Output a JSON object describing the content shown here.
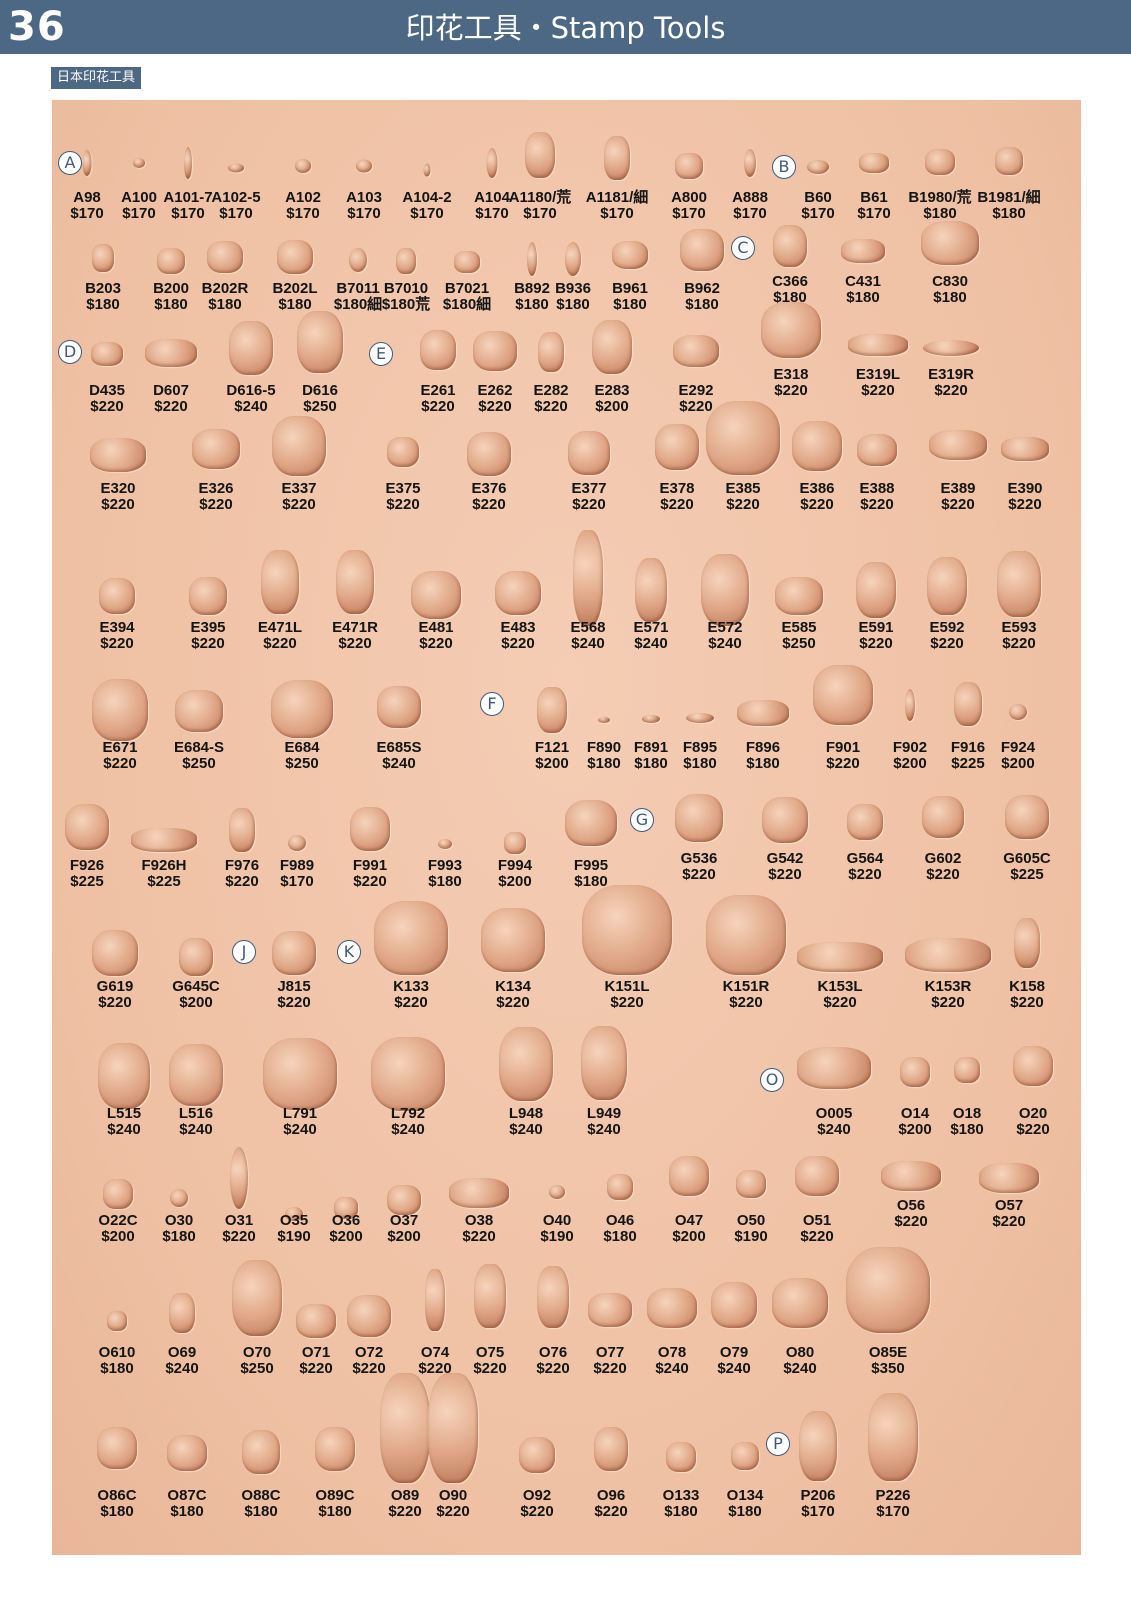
{
  "header": {
    "page_number": "36",
    "title": "印花工具・Stamp Tools"
  },
  "badge": "日本印花工具",
  "sections": [
    "A",
    "B",
    "C",
    "D",
    "E",
    "F",
    "G",
    "J",
    "K",
    "O",
    "P"
  ],
  "stamps": [
    {
      "code": "A98",
      "price": "$170"
    },
    {
      "code": "A100",
      "price": "$170"
    },
    {
      "code": "A101-7",
      "price": "$170"
    },
    {
      "code": "A102-5",
      "price": "$170"
    },
    {
      "code": "A102",
      "price": "$170"
    },
    {
      "code": "A103",
      "price": "$170"
    },
    {
      "code": "A104-2",
      "price": "$170"
    },
    {
      "code": "A104",
      "price": "$170"
    },
    {
      "code": "A1180/荒",
      "price": "$170"
    },
    {
      "code": "A1181/細",
      "price": "$170"
    },
    {
      "code": "A800",
      "price": "$170"
    },
    {
      "code": "A888",
      "price": "$170"
    },
    {
      "code": "B60",
      "price": "$170"
    },
    {
      "code": "B61",
      "price": "$170"
    },
    {
      "code": "B1980/荒",
      "price": "$180"
    },
    {
      "code": "B1981/細",
      "price": "$180"
    },
    {
      "code": "B203",
      "price": "$180"
    },
    {
      "code": "B200",
      "price": "$180"
    },
    {
      "code": "B202R",
      "price": "$180"
    },
    {
      "code": "B202L",
      "price": "$180"
    },
    {
      "code": "B7011",
      "price": "$180細"
    },
    {
      "code": "B7010",
      "price": "$180荒"
    },
    {
      "code": "B7021",
      "price": "$180細"
    },
    {
      "code": "B892",
      "price": "$180"
    },
    {
      "code": "B936",
      "price": "$180"
    },
    {
      "code": "B961",
      "price": "$180"
    },
    {
      "code": "B962",
      "price": "$180"
    },
    {
      "code": "C366",
      "price": "$180"
    },
    {
      "code": "C431",
      "price": "$180"
    },
    {
      "code": "C830",
      "price": "$180"
    },
    {
      "code": "D435",
      "price": "$220"
    },
    {
      "code": "D607",
      "price": "$220"
    },
    {
      "code": "D616-5",
      "price": "$240"
    },
    {
      "code": "D616",
      "price": "$250"
    },
    {
      "code": "E261",
      "price": "$220"
    },
    {
      "code": "E262",
      "price": "$220"
    },
    {
      "code": "E282",
      "price": "$220"
    },
    {
      "code": "E283",
      "price": "$200"
    },
    {
      "code": "E292",
      "price": "$220"
    },
    {
      "code": "E318",
      "price": "$220"
    },
    {
      "code": "E319L",
      "price": "$220"
    },
    {
      "code": "E319R",
      "price": "$220"
    },
    {
      "code": "E320",
      "price": "$220"
    },
    {
      "code": "E326",
      "price": "$220"
    },
    {
      "code": "E337",
      "price": "$220"
    },
    {
      "code": "E375",
      "price": "$220"
    },
    {
      "code": "E376",
      "price": "$220"
    },
    {
      "code": "E377",
      "price": "$220"
    },
    {
      "code": "E378",
      "price": "$220"
    },
    {
      "code": "E385",
      "price": "$220"
    },
    {
      "code": "E386",
      "price": "$220"
    },
    {
      "code": "E388",
      "price": "$220"
    },
    {
      "code": "E389",
      "price": "$220"
    },
    {
      "code": "E390",
      "price": "$220"
    },
    {
      "code": "E394",
      "price": "$220"
    },
    {
      "code": "E395",
      "price": "$220"
    },
    {
      "code": "E471L",
      "price": "$220"
    },
    {
      "code": "E471R",
      "price": "$220"
    },
    {
      "code": "E481",
      "price": "$220"
    },
    {
      "code": "E483",
      "price": "$220"
    },
    {
      "code": "E568",
      "price": "$240"
    },
    {
      "code": "E571",
      "price": "$240"
    },
    {
      "code": "E572",
      "price": "$240"
    },
    {
      "code": "E585",
      "price": "$250"
    },
    {
      "code": "E591",
      "price": "$220"
    },
    {
      "code": "E592",
      "price": "$220"
    },
    {
      "code": "E593",
      "price": "$220"
    },
    {
      "code": "E671",
      "price": "$220"
    },
    {
      "code": "E684-S",
      "price": "$250"
    },
    {
      "code": "E684",
      "price": "$250"
    },
    {
      "code": "E685S",
      "price": "$240"
    },
    {
      "code": "F121",
      "price": "$200"
    },
    {
      "code": "F890",
      "price": "$180"
    },
    {
      "code": "F891",
      "price": "$180"
    },
    {
      "code": "F895",
      "price": "$180"
    },
    {
      "code": "F896",
      "price": "$180"
    },
    {
      "code": "F901",
      "price": "$220"
    },
    {
      "code": "F902",
      "price": "$200"
    },
    {
      "code": "F916",
      "price": "$225"
    },
    {
      "code": "F924",
      "price": "$200"
    },
    {
      "code": "F926",
      "price": "$225"
    },
    {
      "code": "F926H",
      "price": "$225"
    },
    {
      "code": "F976",
      "price": "$220"
    },
    {
      "code": "F989",
      "price": "$170"
    },
    {
      "code": "F991",
      "price": "$220"
    },
    {
      "code": "F993",
      "price": "$180"
    },
    {
      "code": "F994",
      "price": "$200"
    },
    {
      "code": "F995",
      "price": "$180"
    },
    {
      "code": "G536",
      "price": "$220"
    },
    {
      "code": "G542",
      "price": "$220"
    },
    {
      "code": "G564",
      "price": "$220"
    },
    {
      "code": "G602",
      "price": "$220"
    },
    {
      "code": "G605C",
      "price": "$225"
    },
    {
      "code": "G619",
      "price": "$220"
    },
    {
      "code": "G645C",
      "price": "$200"
    },
    {
      "code": "J815",
      "price": "$220"
    },
    {
      "code": "K133",
      "price": "$220"
    },
    {
      "code": "K134",
      "price": "$220"
    },
    {
      "code": "K151L",
      "price": "$220"
    },
    {
      "code": "K151R",
      "price": "$220"
    },
    {
      "code": "K153L",
      "price": "$220"
    },
    {
      "code": "K153R",
      "price": "$220"
    },
    {
      "code": "K158",
      "price": "$220"
    },
    {
      "code": "L515",
      "price": "$240"
    },
    {
      "code": "L516",
      "price": "$240"
    },
    {
      "code": "L791",
      "price": "$240"
    },
    {
      "code": "L792",
      "price": "$240"
    },
    {
      "code": "L948",
      "price": "$240"
    },
    {
      "code": "L949",
      "price": "$240"
    },
    {
      "code": "O005",
      "price": "$240"
    },
    {
      "code": "O14",
      "price": "$200"
    },
    {
      "code": "O18",
      "price": "$180"
    },
    {
      "code": "O20",
      "price": "$220"
    },
    {
      "code": "O22C",
      "price": "$200"
    },
    {
      "code": "O30",
      "price": "$180"
    },
    {
      "code": "O31",
      "price": "$220"
    },
    {
      "code": "O35",
      "price": "$190"
    },
    {
      "code": "O36",
      "price": "$200"
    },
    {
      "code": "O37",
      "price": "$200"
    },
    {
      "code": "O38",
      "price": "$220"
    },
    {
      "code": "O40",
      "price": "$190"
    },
    {
      "code": "O46",
      "price": "$180"
    },
    {
      "code": "O47",
      "price": "$200"
    },
    {
      "code": "O50",
      "price": "$190"
    },
    {
      "code": "O51",
      "price": "$220"
    },
    {
      "code": "O56",
      "price": "$220"
    },
    {
      "code": "O57",
      "price": "$220"
    },
    {
      "code": "O610",
      "price": "$180"
    },
    {
      "code": "O69",
      "price": "$240"
    },
    {
      "code": "O70",
      "price": "$250"
    },
    {
      "code": "O71",
      "price": "$220"
    },
    {
      "code": "O72",
      "price": "$220"
    },
    {
      "code": "O74",
      "price": "$220"
    },
    {
      "code": "O75",
      "price": "$220"
    },
    {
      "code": "O76",
      "price": "$220"
    },
    {
      "code": "O77",
      "price": "$220"
    },
    {
      "code": "O78",
      "price": "$240"
    },
    {
      "code": "O79",
      "price": "$240"
    },
    {
      "code": "O80",
      "price": "$240"
    },
    {
      "code": "O85E",
      "price": "$350"
    },
    {
      "code": "O86C",
      "price": "$180"
    },
    {
      "code": "O87C",
      "price": "$180"
    },
    {
      "code": "O88C",
      "price": "$180"
    },
    {
      "code": "O89C",
      "price": "$180"
    },
    {
      "code": "O89",
      "price": "$220"
    },
    {
      "code": "O90",
      "price": "$220"
    },
    {
      "code": "O92",
      "price": "$220"
    },
    {
      "code": "O96",
      "price": "$220"
    },
    {
      "code": "O133",
      "price": "$180"
    },
    {
      "code": "O134",
      "price": "$180"
    },
    {
      "code": "P206",
      "price": "$170"
    },
    {
      "code": "P226",
      "price": "$170"
    }
  ]
}
